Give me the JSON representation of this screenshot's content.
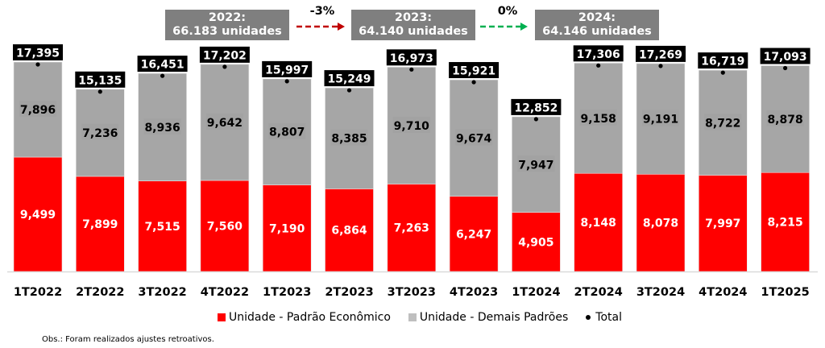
{
  "chart_data": {
    "type": "bar",
    "stacked": true,
    "title": "",
    "xlabel": "",
    "ylabel": "",
    "categories": [
      "1T2022",
      "2T2022",
      "3T2022",
      "4T2022",
      "1T2023",
      "2T2023",
      "3T2023",
      "4T2023",
      "1T2024",
      "2T2024",
      "3T2024",
      "4T2024",
      "1T2025"
    ],
    "series": [
      {
        "name": "Unidade - Padrão Econômico",
        "color": "#ff0000",
        "values": [
          9499,
          7899,
          7515,
          7560,
          7190,
          6864,
          7263,
          6247,
          4905,
          8148,
          8078,
          7997,
          8215
        ],
        "labels": [
          "9,499",
          "7,899",
          "7,515",
          "7,560",
          "7,190",
          "6,864",
          "7,263",
          "6,247",
          "4,905",
          "8,148",
          "8,078",
          "7,997",
          "8,215"
        ]
      },
      {
        "name": "Unidade - Demais Padrões",
        "color": "#a6a6a6",
        "values": [
          7896,
          7236,
          8936,
          9642,
          8807,
          8385,
          9710,
          9674,
          7947,
          9158,
          9191,
          8722,
          8878
        ],
        "labels": [
          "7,896",
          "7,236",
          "8,936",
          "9,642",
          "8,807",
          "8,385",
          "9,710",
          "9,674",
          "7,947",
          "9,158",
          "9,191",
          "8,722",
          "8,878"
        ]
      },
      {
        "name": "Total",
        "color": "#000000",
        "marker": "dot",
        "values": [
          17395,
          15135,
          16451,
          17202,
          15997,
          15249,
          16973,
          15921,
          12852,
          17306,
          17269,
          16719,
          17093
        ],
        "labels": [
          "17,395",
          "15,135",
          "16,451",
          "17,202",
          "15,997",
          "15,249",
          "16,973",
          "15,921",
          "12,852",
          "17,306",
          "17,269",
          "16,719",
          "17,093"
        ]
      }
    ],
    "ylim": [
      0,
      17500
    ],
    "grid": false,
    "y_axis_visible": false,
    "legend": "bottom-center",
    "annotations": [
      {
        "year": "2022:",
        "text": "66.183 unidades"
      },
      {
        "year": "2023:",
        "text": "64.140 unidades"
      },
      {
        "year": "2024:",
        "text": "64.146 unidades"
      }
    ],
    "changes": [
      {
        "label": "-3%",
        "color": "#c00000"
      },
      {
        "label": "0%",
        "color": "#00b050"
      }
    ]
  },
  "legend": {
    "items": [
      "Unidade - Padrão Econômico",
      "Unidade - Demais Padrões",
      "Total"
    ]
  },
  "note": "Obs.: Foram realizados ajustes retroativos."
}
